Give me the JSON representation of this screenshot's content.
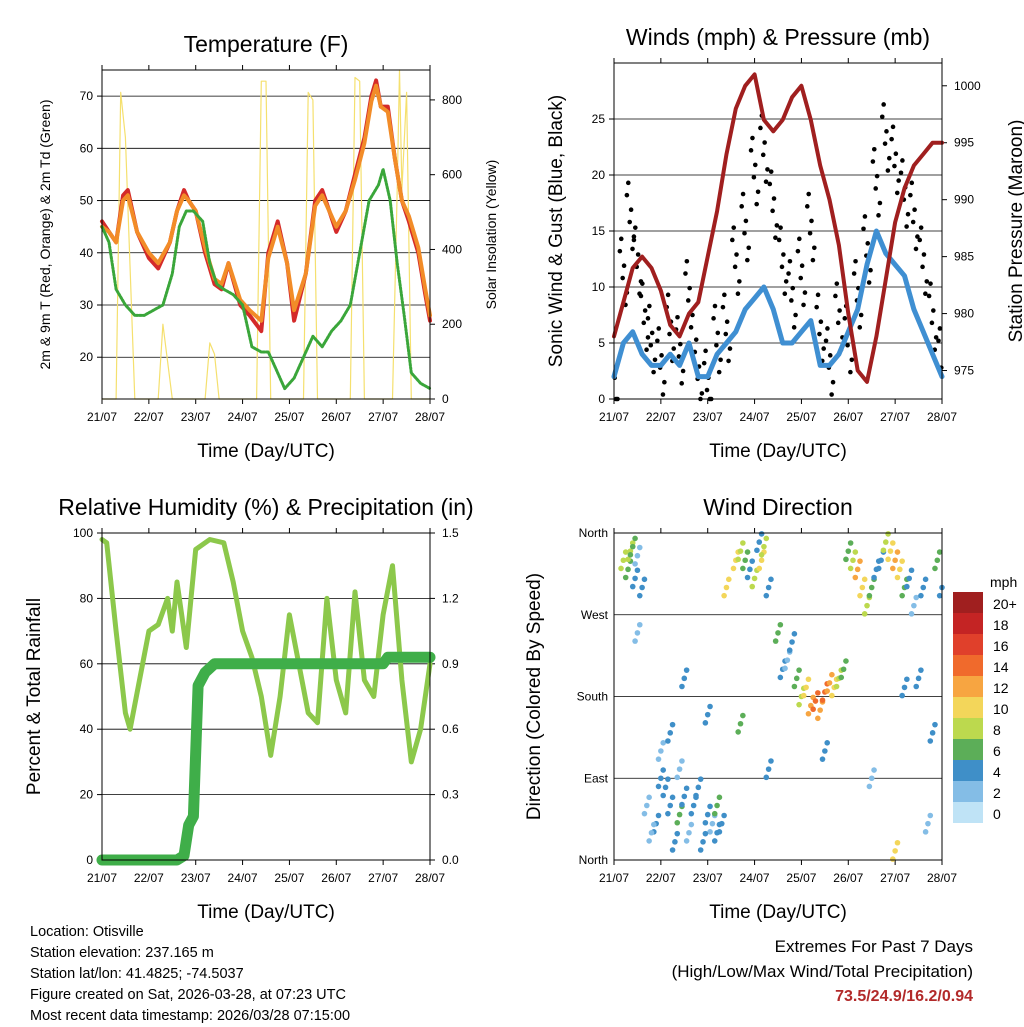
{
  "colors": {
    "t2m": "#d42a2a",
    "t9m": "#f28c28",
    "td": "#3aa63a",
    "solar": "#f5e06e",
    "gust": "#000000",
    "wind": "#3f8fd2",
    "pressure": "#a01f1f",
    "rh": "#8cc84b",
    "precip": "#3fae49",
    "extremes": "#b22a2a"
  },
  "chart_data": [
    {
      "id": "temperature",
      "type": "line",
      "title": "Temperature (F)",
      "xlabel": "Time (Day/UTC)",
      "ylabel": "2m & 9m T (Red, Orange) & 2m Td (Green)",
      "y2label": "Solar Insolation (Yellow)",
      "x_ticks": [
        "21/07",
        "22/07",
        "23/07",
        "24/07",
        "25/07",
        "26/07",
        "27/07",
        "28/07"
      ],
      "xlim": [
        0,
        7
      ],
      "ylim": [
        12,
        75
      ],
      "yticks": [
        20,
        30,
        40,
        50,
        60,
        70
      ],
      "y2lim": [
        0,
        880
      ],
      "y2ticks": [
        0,
        200,
        400,
        600,
        800
      ],
      "series": [
        {
          "name": "2m T",
          "axis": "left",
          "color_key": "t2m",
          "x": [
            0,
            0.15,
            0.3,
            0.45,
            0.55,
            0.75,
            1.0,
            1.2,
            1.45,
            1.6,
            1.75,
            1.85,
            2.0,
            2.2,
            2.4,
            2.55,
            2.7,
            2.95,
            3.15,
            3.4,
            3.55,
            3.75,
            3.95,
            4.1,
            4.35,
            4.55,
            4.7,
            4.85,
            5.0,
            5.2,
            5.4,
            5.6,
            5.75,
            5.85,
            5.95,
            6.1,
            6.25,
            6.4,
            6.55,
            6.75,
            6.9,
            7.0
          ],
          "y": [
            46,
            44,
            42,
            51,
            52,
            44,
            39,
            37,
            42,
            48,
            52,
            50,
            48,
            40,
            34,
            33,
            38,
            30,
            28,
            25,
            40,
            46,
            38,
            27,
            36,
            50,
            52,
            48,
            44,
            48,
            55,
            62,
            70,
            73,
            68,
            68,
            58,
            50,
            46,
            40,
            32,
            27
          ]
        },
        {
          "name": "9m T",
          "axis": "left",
          "color_key": "t9m",
          "x": [
            0,
            0.15,
            0.3,
            0.45,
            0.55,
            0.75,
            1.0,
            1.2,
            1.45,
            1.6,
            1.75,
            1.85,
            2.0,
            2.2,
            2.4,
            2.55,
            2.7,
            2.95,
            3.15,
            3.4,
            3.55,
            3.75,
            3.95,
            4.1,
            4.35,
            4.55,
            4.7,
            4.85,
            5.0,
            5.2,
            5.4,
            5.6,
            5.75,
            5.85,
            5.95,
            6.1,
            6.25,
            6.4,
            6.55,
            6.75,
            6.9,
            7.0
          ],
          "y": [
            45,
            44,
            42,
            50,
            51,
            44,
            40,
            38,
            42,
            48,
            51,
            50,
            48,
            41,
            35,
            34,
            38,
            31,
            29,
            27,
            39,
            45,
            38,
            29,
            36,
            49,
            51,
            48,
            45,
            48,
            54,
            61,
            69,
            72,
            68,
            67,
            58,
            50,
            47,
            41,
            33,
            28
          ]
        },
        {
          "name": "2m Td",
          "axis": "left",
          "color_key": "td",
          "x": [
            0,
            0.15,
            0.3,
            0.5,
            0.7,
            0.9,
            1.1,
            1.3,
            1.5,
            1.65,
            1.8,
            1.95,
            2.15,
            2.3,
            2.45,
            2.6,
            2.8,
            3.0,
            3.2,
            3.4,
            3.55,
            3.7,
            3.9,
            4.1,
            4.3,
            4.5,
            4.7,
            4.9,
            5.1,
            5.3,
            5.5,
            5.7,
            5.9,
            6.0,
            6.15,
            6.3,
            6.45,
            6.6,
            6.8,
            7.0
          ],
          "y": [
            45,
            42,
            33,
            30,
            28,
            28,
            29,
            30,
            36,
            45,
            48,
            48,
            46,
            38,
            34,
            33,
            32,
            30,
            22,
            21,
            21,
            18,
            14,
            16,
            20,
            24,
            22,
            25,
            27,
            30,
            40,
            50,
            53,
            56,
            50,
            38,
            28,
            17,
            15,
            14
          ]
        },
        {
          "name": "Solar",
          "axis": "right",
          "color_key": "solar",
          "x": [
            0,
            0.3,
            0.4,
            0.5,
            0.7,
            1.0,
            1.2,
            1.3,
            1.4,
            1.5,
            2.0,
            2.2,
            2.3,
            2.4,
            2.5,
            3.0,
            3.3,
            3.4,
            3.5,
            3.6,
            4.0,
            4.3,
            4.4,
            4.5,
            4.6,
            5.0,
            5.3,
            5.4,
            5.5,
            5.6,
            6.0,
            6.2,
            6.3,
            6.35,
            6.4,
            6.5,
            6.6,
            7.0
          ],
          "y": [
            0,
            0,
            820,
            700,
            0,
            0,
            0,
            200,
            100,
            0,
            0,
            0,
            150,
            120,
            0,
            0,
            0,
            850,
            850,
            0,
            0,
            0,
            820,
            800,
            0,
            0,
            0,
            860,
            850,
            0,
            0,
            0,
            560,
            880,
            560,
            820,
            0,
            0
          ]
        }
      ]
    },
    {
      "id": "winds",
      "type": "line+scatter",
      "title": "Winds (mph) & Pressure (mb)",
      "xlabel": "Time (Day/UTC)",
      "ylabel": "Sonic Wind & Gust (Blue, Black)",
      "y2label": "Station Pressure (Maroon)",
      "x_ticks": [
        "21/07",
        "22/07",
        "23/07",
        "24/07",
        "25/07",
        "26/07",
        "27/07",
        "28/07"
      ],
      "xlim": [
        0,
        7
      ],
      "ylim": [
        0,
        30
      ],
      "yticks": [
        0,
        5,
        10,
        15,
        20,
        25
      ],
      "y2lim": [
        972.5,
        1002
      ],
      "y2ticks": [
        975,
        980,
        985,
        990,
        995,
        1000
      ],
      "series": [
        {
          "name": "Gust",
          "axis": "left",
          "color_key": "gust",
          "x": [
            0,
            0.2,
            0.35,
            0.5,
            0.65,
            0.8,
            1.0,
            1.2,
            1.4,
            1.6,
            1.8,
            2.0,
            2.2,
            2.4,
            2.6,
            2.8,
            3.0,
            3.2,
            3.4,
            3.6,
            3.8,
            4.0,
            4.2,
            4.4,
            4.6,
            4.8,
            5.0,
            5.2,
            5.4,
            5.6,
            5.8,
            6.0,
            6.2,
            6.4,
            6.6,
            6.8,
            7.0
          ],
          "y": [
            4,
            14,
            19,
            15,
            10,
            8,
            6,
            9,
            7,
            12,
            5,
            4,
            8,
            9,
            15,
            18,
            23,
            25,
            20,
            15,
            12,
            14,
            18,
            9,
            6,
            10,
            8,
            12,
            16,
            22,
            26,
            24,
            21,
            19,
            15,
            10,
            6
          ]
        },
        {
          "name": "Sonic Wind",
          "axis": "left",
          "color_key": "wind",
          "x": [
            0,
            0.2,
            0.4,
            0.6,
            0.8,
            1.0,
            1.2,
            1.4,
            1.6,
            1.8,
            2.0,
            2.2,
            2.4,
            2.6,
            2.8,
            3.0,
            3.2,
            3.4,
            3.6,
            3.8,
            4.0,
            4.2,
            4.4,
            4.6,
            4.8,
            5.0,
            5.2,
            5.4,
            5.6,
            5.8,
            6.0,
            6.2,
            6.4,
            6.6,
            6.8,
            7.0
          ],
          "y": [
            2,
            5,
            6,
            4,
            3,
            3,
            4,
            3,
            5,
            2,
            2,
            4,
            5,
            6,
            8,
            9,
            10,
            8,
            5,
            5,
            6,
            7,
            3,
            3,
            4,
            6,
            8,
            12,
            15,
            13,
            12,
            11,
            8,
            6,
            4,
            2
          ]
        },
        {
          "name": "Pressure",
          "axis": "right",
          "color_key": "pressure",
          "x": [
            0,
            0.2,
            0.4,
            0.6,
            0.8,
            1.0,
            1.2,
            1.4,
            1.6,
            1.8,
            2.0,
            2.2,
            2.4,
            2.6,
            2.8,
            3.0,
            3.2,
            3.4,
            3.6,
            3.8,
            4.0,
            4.2,
            4.4,
            4.6,
            4.8,
            5.0,
            5.2,
            5.4,
            5.6,
            5.8,
            6.0,
            6.2,
            6.4,
            6.6,
            6.8,
            7.0
          ],
          "y": [
            978,
            981,
            984,
            985,
            984,
            982,
            979,
            978,
            980,
            981,
            985,
            989,
            994,
            998,
            1000,
            1001,
            997,
            996,
            997,
            999,
            1000,
            997,
            993,
            990,
            986,
            980,
            975,
            974,
            978,
            983,
            988,
            991,
            993,
            994,
            995,
            995
          ]
        }
      ]
    },
    {
      "id": "humidity",
      "type": "line",
      "title": "Relative Humidity (%) & Precipitation (in)",
      "xlabel": "Time (Day/UTC)",
      "ylabel": "Percent & Total Rainfall",
      "x_ticks": [
        "21/07",
        "22/07",
        "23/07",
        "24/07",
        "25/07",
        "26/07",
        "27/07",
        "28/07"
      ],
      "xlim": [
        0,
        7
      ],
      "ylim": [
        0,
        100
      ],
      "yticks": [
        0,
        20,
        40,
        60,
        80,
        100
      ],
      "y2lim": [
        0,
        1.5
      ],
      "y2ticks": [
        "0.0",
        "0.3",
        "0.6",
        "0.9",
        "1.2",
        "1.5"
      ],
      "series": [
        {
          "name": "Relative Humidity",
          "axis": "left",
          "color_key": "rh",
          "x": [
            0,
            0.1,
            0.3,
            0.5,
            0.6,
            0.8,
            1.0,
            1.2,
            1.4,
            1.5,
            1.6,
            1.7,
            1.8,
            2.0,
            2.3,
            2.6,
            2.8,
            3.0,
            3.2,
            3.4,
            3.6,
            3.8,
            4.0,
            4.2,
            4.4,
            4.6,
            4.8,
            5.0,
            5.2,
            5.4,
            5.6,
            5.8,
            6.0,
            6.2,
            6.4,
            6.6,
            6.8,
            7.0
          ],
          "y": [
            98,
            97,
            70,
            45,
            40,
            55,
            70,
            72,
            80,
            70,
            85,
            75,
            65,
            95,
            98,
            97,
            85,
            70,
            62,
            50,
            32,
            50,
            75,
            60,
            45,
            42,
            80,
            55,
            45,
            82,
            55,
            50,
            75,
            90,
            55,
            30,
            40,
            60
          ]
        },
        {
          "name": "Total Precipitation",
          "axis": "right",
          "color_key": "precip",
          "x": [
            0,
            1.6,
            1.75,
            1.85,
            1.95,
            2.05,
            2.2,
            2.4,
            2.6,
            6.0,
            6.1,
            7.0
          ],
          "y": [
            0,
            0,
            0.02,
            0.16,
            0.2,
            0.8,
            0.86,
            0.9,
            0.9,
            0.9,
            0.93,
            0.93
          ]
        }
      ]
    },
    {
      "id": "direction",
      "type": "scatter",
      "title": "Wind Direction",
      "xlabel": "Time (Day/UTC)",
      "ylabel": "Direction (Colored By Speed)",
      "x_ticks": [
        "21/07",
        "22/07",
        "23/07",
        "24/07",
        "25/07",
        "26/07",
        "27/07",
        "28/07"
      ],
      "xlim": [
        0,
        7
      ],
      "ylim": [
        0,
        360
      ],
      "y_ticks": [
        "North",
        "East",
        "South",
        "West",
        "North"
      ],
      "colorbar": {
        "unit": "mph",
        "labels": [
          "20+",
          "18",
          "16",
          "14",
          "12",
          "10",
          "8",
          "6",
          "4",
          "2",
          "0"
        ],
        "colors": [
          "#a01f1f",
          "#c42424",
          "#e0402b",
          "#f06a2c",
          "#f7a541",
          "#f3d65a",
          "#bcd94e",
          "#5cae58",
          "#3f8fc8",
          "#84bde6",
          "#bfe3f6"
        ]
      },
      "points": {
        "x": [
          0.2,
          0.3,
          0.35,
          0.4,
          0.5,
          0.45,
          0.6,
          0.7,
          0.9,
          1.0,
          1.1,
          1.0,
          0.8,
          1.2,
          1.3,
          1.4,
          1.5,
          1.4,
          1.2,
          1.6,
          1.7,
          1.8,
          2.0,
          2.1,
          2.2,
          2.0,
          1.9,
          2.2,
          2.3,
          2.4,
          2.6,
          2.7,
          2.8,
          2.9,
          3.0,
          3.1,
          3.15,
          3.2,
          3.3,
          3.5,
          3.6,
          3.7,
          3.8,
          3.9,
          4.0,
          4.1,
          4.2,
          4.3,
          4.4,
          4.5,
          4.6,
          4.7,
          4.8,
          4.9,
          5.0,
          5.1,
          5.2,
          5.3,
          5.4,
          5.5,
          5.6,
          5.7,
          5.8,
          5.9,
          6.0,
          6.1,
          6.2,
          6.3,
          6.4,
          6.5,
          6.6,
          6.7,
          6.8,
          6.9,
          7.0,
          0.5,
          1.5,
          2.7,
          3.3,
          4.5,
          5.5,
          6.0,
          6.2
        ],
        "y": [
          330,
          320,
          340,
          345,
          335,
          310,
          300,
          60,
          40,
          90,
          80,
          120,
          30,
          60,
          20,
          50,
          70,
          100,
          140,
          30,
          60,
          80,
          50,
          40,
          30,
          160,
          20,
          60,
          40,
          300,
          330,
          340,
          330,
          320,
          310,
          350,
          330,
          345,
          300,
          250,
          210,
          220,
          240,
          200,
          180,
          190,
          170,
          175,
          165,
          185,
          195,
          190,
          200,
          210,
          340,
          330,
          320,
          300,
          280,
          300,
          320,
          330,
          350,
          340,
          330,
          320,
          300,
          310,
          280,
          200,
          300,
          40,
          140,
          330,
          300,
          250,
          200,
          150,
          100,
          120,
          90,
          10,
          190
        ],
        "speed": [
          8,
          6,
          8,
          6,
          2,
          4,
          3,
          2,
          3,
          4,
          3,
          2,
          2,
          4,
          4,
          6,
          3,
          2,
          3,
          2,
          4,
          3,
          4,
          2,
          3,
          3,
          4,
          6,
          4,
          10,
          10,
          8,
          6,
          4,
          8,
          4,
          10,
          8,
          4,
          6,
          4,
          2,
          3,
          6,
          8,
          10,
          12,
          14,
          12,
          14,
          12,
          10,
          8,
          6,
          6,
          8,
          12,
          10,
          8,
          6,
          4,
          3,
          8,
          10,
          12,
          10,
          6,
          4,
          2,
          4,
          3,
          2,
          3,
          6,
          4,
          2,
          4,
          6,
          3,
          4,
          2,
          10,
          4
        ]
      }
    }
  ],
  "info": {
    "location": "Location: Otisville",
    "elevation": "Station elevation: 237.165 m",
    "latlon": "Station lat/lon: 41.4825; -74.5037",
    "created": "Figure created on Sat, 2026-03-28, at 07:23 UTC",
    "recent": "Most recent data timestamp: 2026/03/28 07:15:00"
  },
  "extremes": {
    "title": "Extremes For Past 7 Days",
    "subtitle": "(High/Low/Max Wind/Total Precipitation)",
    "values": "73.5/24.9/16.2/0.94"
  }
}
